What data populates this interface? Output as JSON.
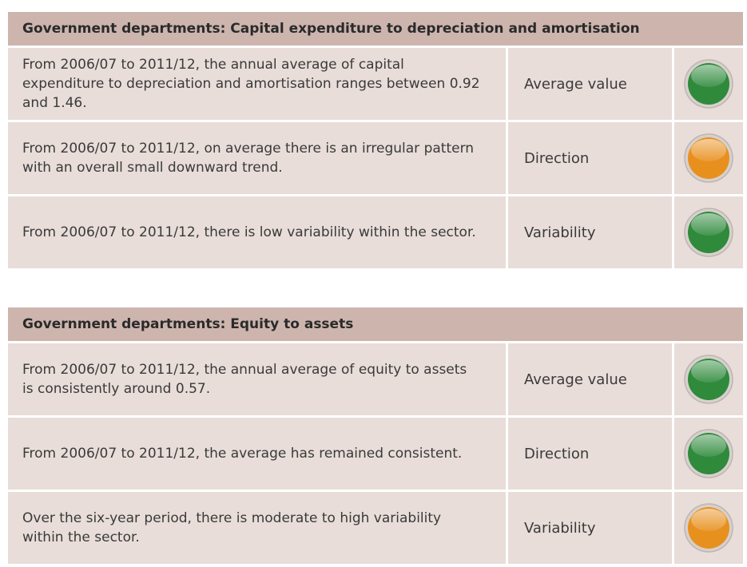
{
  "tables": [
    {
      "title": "Government departments: Capital expenditure to depreciation and amortisation",
      "rows": [
        {
          "text": "From 2006/07 to 2011/12, the annual average of capital expenditure to depreciation and amortisation ranges between 0.92 and 1.46.",
          "label": "Average value",
          "color": "#2f8a3c"
        },
        {
          "text": "From 2006/07 to 2011/12, on average there is an irregular pattern with an overall small downward trend.",
          "label": "Direction",
          "color": "#e8901e"
        },
        {
          "text": "From 2006/07 to 2011/12, there is low variability within the sector.",
          "label": "Variability",
          "color": "#2f8a3c"
        }
      ]
    },
    {
      "title": "Government departments: Equity to assets",
      "rows": [
        {
          "text": "From 2006/07 to 2011/12, the annual average of equity to assets is consistently around 0.57.",
          "label": "Average value",
          "color": "#2f8a3c"
        },
        {
          "text": "From 2006/07 to 2011/12, the average has remained consistent.",
          "label": "Direction",
          "color": "#2f8a3c"
        },
        {
          "text": "Over the six-year period, there is moderate to high variability within the sector.",
          "label": "Variability",
          "color": "#e8901e"
        }
      ]
    }
  ]
}
